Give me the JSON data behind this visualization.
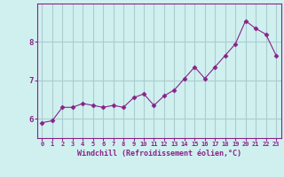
{
  "x": [
    0,
    1,
    2,
    3,
    4,
    5,
    6,
    7,
    8,
    9,
    10,
    11,
    12,
    13,
    14,
    15,
    16,
    17,
    18,
    19,
    20,
    21,
    22,
    23
  ],
  "y": [
    5.9,
    5.95,
    6.3,
    6.3,
    6.4,
    6.35,
    6.3,
    6.35,
    6.3,
    6.55,
    6.65,
    6.35,
    6.6,
    6.75,
    7.05,
    7.35,
    7.05,
    7.35,
    7.65,
    7.95,
    8.55,
    8.35,
    8.2,
    7.65
  ],
  "line_color": "#882288",
  "marker": "D",
  "marker_size": 2.5,
  "bg_color": "#d0f0f0",
  "grid_color": "#aacccc",
  "xlabel": "Windchill (Refroidissement éolien,°C)",
  "xlabel_color": "#882288",
  "tick_color": "#882288",
  "ylim": [
    5.5,
    9.0
  ],
  "xlim": [
    -0.5,
    23.5
  ],
  "yticks": [
    6,
    7,
    8
  ],
  "xticks": [
    0,
    1,
    2,
    3,
    4,
    5,
    6,
    7,
    8,
    9,
    10,
    11,
    12,
    13,
    14,
    15,
    16,
    17,
    18,
    19,
    20,
    21,
    22,
    23
  ]
}
